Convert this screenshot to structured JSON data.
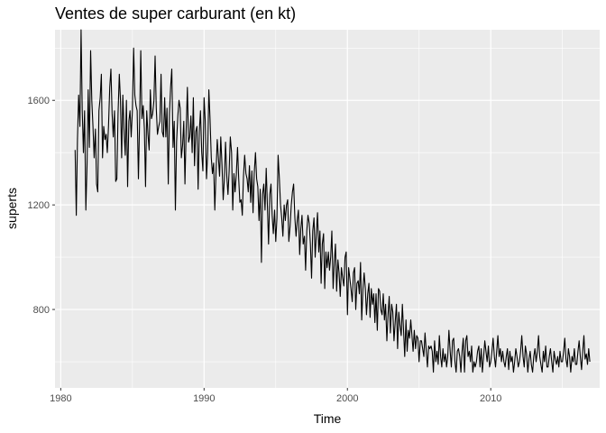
{
  "chart_data": {
    "type": "line",
    "title": "Ventes de super carburant (en kt)",
    "xlabel": "Time",
    "ylabel": "superts",
    "x_ticks": [
      1980,
      1990,
      2000,
      2010
    ],
    "y_ticks": [
      800,
      1200,
      1600
    ],
    "xlim": [
      1979.6,
      2017.6
    ],
    "ylim": [
      500,
      1870
    ],
    "grid": true,
    "frequency": 12,
    "start_year": 1981,
    "series": [
      {
        "name": "",
        "values": [
          1410,
          1160,
          1450,
          1620,
          1500,
          1870,
          1560,
          1400,
          1560,
          1180,
          1350,
          1640,
          1420,
          1790,
          1600,
          1500,
          1380,
          1490,
          1280,
          1250,
          1560,
          1610,
          1700,
          1380,
          1500,
          1450,
          1470,
          1400,
          1500,
          1650,
          1720,
          1550,
          1460,
          1560,
          1290,
          1300,
          1550,
          1700,
          1600,
          1380,
          1620,
          1480,
          1390,
          1600,
          1270,
          1520,
          1560,
          1460,
          1560,
          1800,
          1620,
          1580,
          1560,
          1300,
          1520,
          1790,
          1530,
          1580,
          1490,
          1270,
          1560,
          1470,
          1410,
          1640,
          1530,
          1550,
          1600,
          1770,
          1570,
          1470,
          1500,
          1520,
          1700,
          1480,
          1460,
          1610,
          1460,
          1570,
          1280,
          1550,
          1650,
          1720,
          1420,
          1520,
          1180,
          1440,
          1540,
          1600,
          1570,
          1380,
          1430,
          1520,
          1280,
          1480,
          1650,
          1440,
          1460,
          1540,
          1400,
          1610,
          1350,
          1480,
          1500,
          1260,
          1480,
          1560,
          1400,
          1330,
          1610,
          1520,
          1300,
          1400,
          1640,
          1530,
          1380,
          1320,
          1360,
          1180,
          1330,
          1450,
          1380,
          1310,
          1460,
          1350,
          1220,
          1300,
          1440,
          1310,
          1240,
          1330,
          1460,
          1400,
          1180,
          1320,
          1250,
          1320,
          1420,
          1300,
          1210,
          1220,
          1160,
          1310,
          1390,
          1320,
          1300,
          1250,
          1350,
          1210,
          1330,
          1170,
          1320,
          1400,
          1300,
          1270,
          1140,
          1260,
          980,
          1240,
          1280,
          1180,
          1340,
          1200,
          1050,
          1240,
          1280,
          1160,
          1090,
          1180,
          1060,
          1150,
          1390,
          1300,
          1200,
          1150,
          1080,
          1200,
          1140,
          1200,
          1220,
          1060,
          1120,
          1200,
          1250,
          1280,
          1150,
          1080,
          1140,
          1180,
          1010,
          1110,
          1160,
          1050,
          1080,
          950,
          1100,
          1160,
          1130,
          1050,
          920,
          1100,
          1150,
          1000,
          1090,
          1170,
          1020,
          1100,
          900,
          1050,
          1090,
          880,
          1020,
          960,
          1020,
          950,
          1000,
          1100,
          880,
          980,
          1050,
          870,
          990,
          940,
          850,
          960,
          920,
          890,
          1000,
          1020,
          780,
          960,
          920,
          880,
          830,
          940,
          960,
          800,
          900,
          910,
          860,
          980,
          760,
          880,
          940,
          880,
          780,
          860,
          900,
          770,
          880,
          820,
          860,
          750,
          860,
          720,
          880,
          870,
          800,
          780,
          860,
          760,
          820,
          680,
          780,
          850,
          710,
          820,
          790,
          680,
          750,
          820,
          650,
          790,
          740,
          700,
          820,
          720,
          620,
          760,
          640,
          720,
          690,
          760,
          700,
          640,
          720,
          650,
          700,
          690,
          600,
          680,
          680,
          650,
          620,
          710,
          640,
          580,
          660,
          650,
          660,
          640,
          560,
          680,
          600,
          640,
          590,
          700,
          620,
          580,
          650,
          600,
          630,
          580,
          620,
          720,
          640,
          580,
          680,
          690,
          600,
          560,
          640,
          650,
          620,
          560,
          640,
          690,
          560,
          680,
          700,
          620,
          640,
          600,
          660,
          560,
          600,
          580,
          600,
          640,
          660,
          580,
          650,
          560,
          620,
          680,
          640,
          600,
          660,
          580,
          600,
          640,
          690,
          620,
          580,
          640,
          700,
          620,
          650,
          600,
          640,
          600,
          580,
          620,
          650,
          570,
          640,
          600,
          620,
          560,
          600,
          650,
          620,
          580,
          600,
          640,
          700,
          620,
          580,
          660,
          630,
          560,
          610,
          640,
          590,
          560,
          620,
          650,
          600,
          640,
          700,
          620,
          590,
          560,
          640,
          600,
          660,
          580,
          580,
          620,
          650,
          600,
          560,
          640,
          610,
          590,
          620,
          580,
          640,
          600,
          600,
          640,
          690,
          610,
          580,
          650,
          620,
          560,
          620,
          600,
          650,
          590,
          590,
          640,
          680,
          620,
          570,
          640,
          700,
          610,
          630,
          590,
          650,
          600
        ]
      }
    ]
  }
}
